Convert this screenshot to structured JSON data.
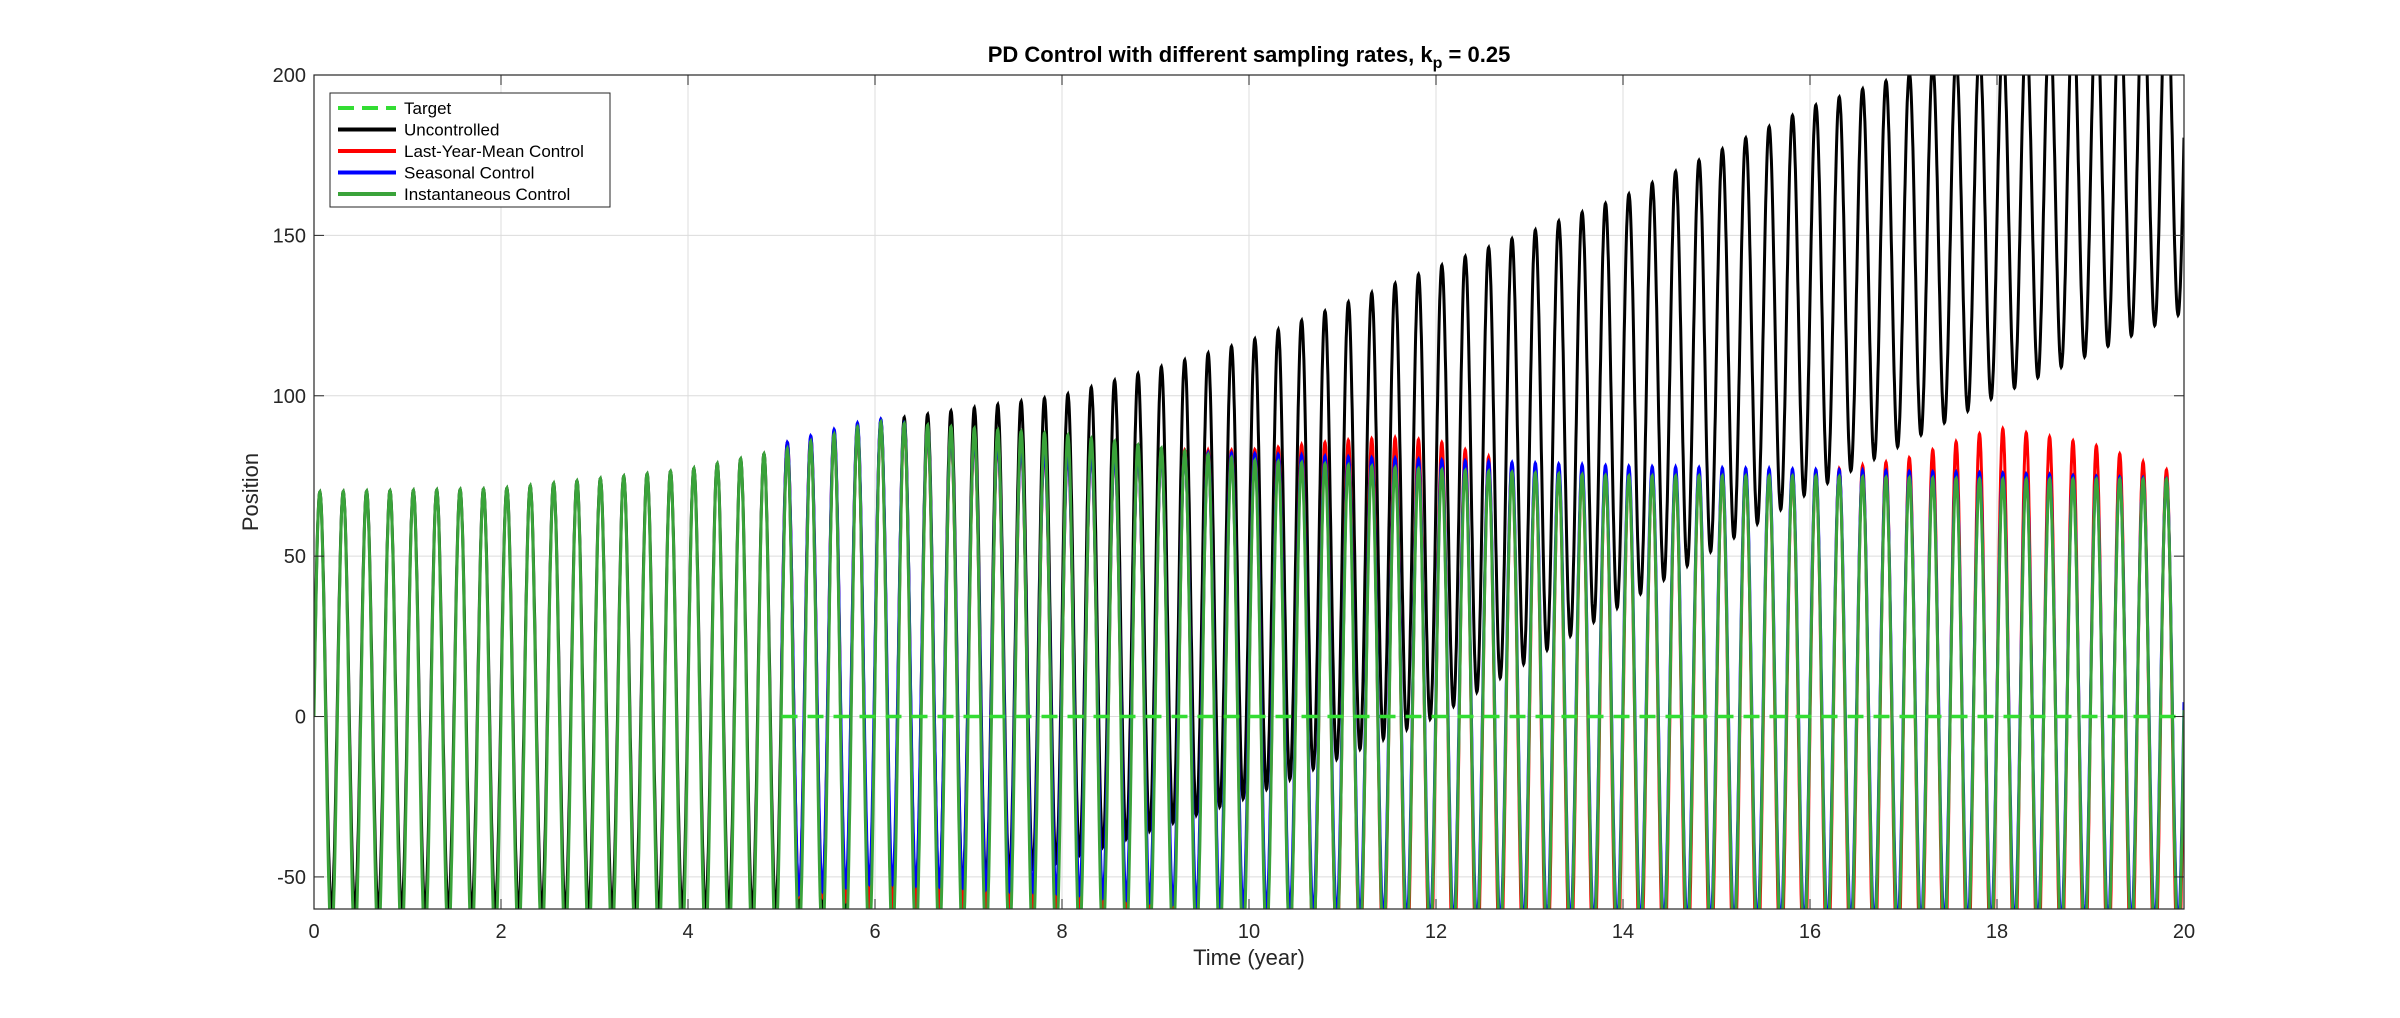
{
  "chart_data": {
    "type": "line",
    "title": "PD  Control  with  different  sampling  rates,  k",
    "title_sub": "p",
    "title_tail": "  =  0.25",
    "xlabel": "Time (year)",
    "ylabel": "Position",
    "xlim": [
      0,
      20
    ],
    "ylim": [
      -60,
      200
    ],
    "xticks": [
      "0",
      "2",
      "4",
      "6",
      "8",
      "10",
      "12",
      "14",
      "16",
      "18",
      "20"
    ],
    "yticks": [
      "-50",
      "0",
      "50",
      "100",
      "150",
      "200"
    ],
    "grid": true,
    "legend_position": "top-left",
    "series": [
      {
        "name": "Target",
        "color": "#33dd33",
        "style": "dashed",
        "x": [
          5,
          20
        ],
        "y": [
          0,
          0
        ]
      },
      {
        "name": "Uncontrolled",
        "color": "#000000",
        "style": "solid",
        "model": "oscillation",
        "period_years": 0.25,
        "x_start": 0,
        "x_end": 20,
        "max_envelope": {
          "x": [
            0,
            2,
            4,
            5,
            6,
            8,
            10,
            12,
            14,
            16,
            18,
            20
          ],
          "y": [
            70,
            71,
            77,
            83,
            92,
            100,
            117,
            140,
            162,
            190,
            210,
            235
          ]
        },
        "min_envelope": {
          "x": [
            0,
            5,
            6,
            8,
            10,
            12,
            14,
            16,
            18,
            20
          ],
          "y": [
            -60,
            -60,
            -60,
            -45,
            -25,
            0,
            35,
            70,
            100,
            126
          ]
        }
      },
      {
        "name": "Last-Year-Mean Control",
        "color": "#ff0000",
        "style": "solid",
        "model": "oscillation",
        "period_years": 0.25,
        "x_start": 5,
        "x_end": 20,
        "max_envelope": {
          "x": [
            5,
            6,
            8,
            10,
            11,
            11.5,
            12,
            13,
            14,
            16,
            17,
            18,
            19,
            20
          ],
          "y": [
            85,
            92,
            83,
            83,
            86,
            87,
            86,
            77,
            76,
            76,
            80,
            90,
            85,
            75
          ]
        },
        "min_envelope": {
          "x": [
            5,
            5.5,
            6,
            8,
            10,
            12,
            14,
            16,
            18,
            20
          ],
          "y": [
            -56,
            -56,
            -60,
            -60,
            -65,
            -80,
            -80,
            -80,
            -80,
            -80
          ]
        }
      },
      {
        "name": "Seasonal Control",
        "color": "#0000ff",
        "style": "solid",
        "model": "oscillation",
        "period_years": 0.25,
        "x_start": 5,
        "x_end": 20,
        "max_envelope": {
          "x": [
            5,
            6,
            8,
            10,
            12,
            14,
            16,
            18,
            20
          ],
          "y": [
            85,
            93,
            83,
            82,
            80,
            78,
            77,
            76,
            74
          ]
        },
        "min_envelope": {
          "x": [
            5,
            6,
            8,
            9,
            10,
            12,
            20
          ],
          "y": [
            -56,
            -52,
            -55,
            -58,
            -60,
            -65,
            -65
          ]
        }
      },
      {
        "name": "Instantaneous Control",
        "color": "#3aa33a",
        "style": "solid",
        "model": "oscillation",
        "period_years": 0.25,
        "x_start": 0,
        "x_end": 20,
        "max_envelope": {
          "x": [
            0,
            2,
            4,
            5,
            6,
            7,
            8,
            10,
            12,
            14,
            16,
            18,
            20
          ],
          "y": [
            70,
            71,
            77,
            83,
            92,
            90,
            88,
            80,
            77,
            75,
            75,
            74,
            74
          ]
        },
        "min_envelope": {
          "x": [
            0,
            5,
            6,
            8,
            20
          ],
          "y": [
            -70,
            -70,
            -70,
            -70,
            -70
          ]
        }
      }
    ]
  }
}
